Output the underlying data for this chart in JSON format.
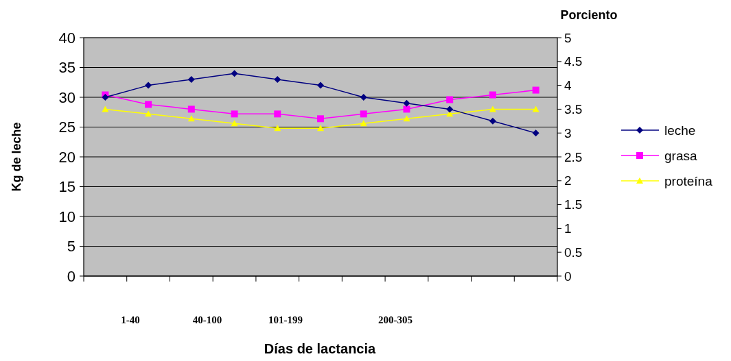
{
  "chart_data": {
    "type": "line",
    "xlabel": "Días de lactancia",
    "ylabel": "Kg de leche",
    "y2label": "Porciento",
    "categories": [
      null,
      null,
      null,
      null,
      null,
      null,
      null,
      null,
      null,
      null,
      null
    ],
    "series": [
      {
        "name": "leche",
        "color": "#000080",
        "marker": "diamond",
        "values": [
          30,
          32,
          33,
          34,
          33,
          32,
          30,
          29,
          28,
          26,
          24
        ]
      },
      {
        "name": "grasa",
        "color": "#ff00ff",
        "marker": "square",
        "axis": "y2",
        "values": [
          3.8,
          3.6,
          3.5,
          3.4,
          3.4,
          3.3,
          3.4,
          3.5,
          3.7,
          3.8,
          3.9
        ]
      },
      {
        "name": "proteína",
        "color": "#ffff00",
        "marker": "triangle",
        "axis": "y2",
        "values": [
          3.5,
          3.4,
          3.3,
          3.2,
          3.1,
          3.1,
          3.2,
          3.3,
          3.4,
          3.5,
          3.5
        ]
      }
    ],
    "ylim": [
      0,
      40
    ],
    "yticks": [
      0,
      5,
      10,
      15,
      20,
      25,
      30,
      35,
      40
    ],
    "y2lim": [
      0,
      5
    ],
    "y2ticks": [
      0,
      0.5,
      1,
      1.5,
      2,
      2.5,
      3,
      3.5,
      4,
      4.5,
      5
    ],
    "annotations": [
      "1-40",
      "40-100",
      "101-199",
      "200-305"
    ],
    "grid": "y",
    "legend": "right"
  }
}
